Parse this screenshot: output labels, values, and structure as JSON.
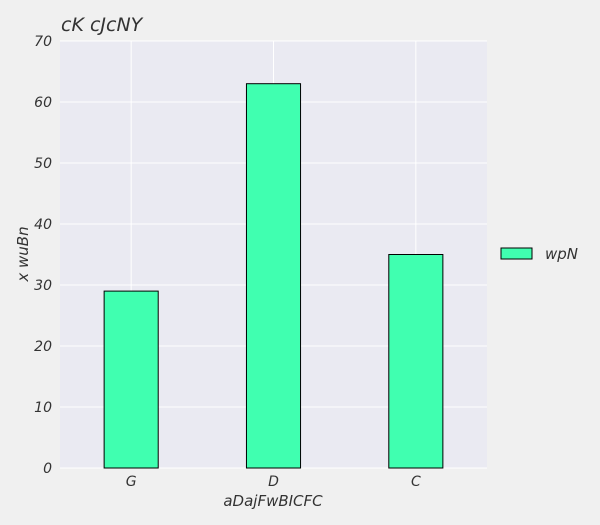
{
  "chart_data": {
    "type": "bar",
    "title": "cK cJcNY",
    "xlabel": "aDajFwBICFC",
    "ylabel": "x wuBn",
    "categories": [
      "G",
      "D",
      "C"
    ],
    "series": [
      {
        "name": "wpN",
        "values": [
          29,
          63,
          35
        ]
      }
    ],
    "ylim": [
      0,
      70
    ],
    "yticks": [
      0,
      10,
      20,
      30,
      40,
      50,
      60,
      70
    ],
    "grid": true,
    "legend_position": "right",
    "colors": {
      "bar_fill": "#40ffb0",
      "bar_edge": "#000000",
      "plot_background": "#eaeaf2",
      "figure_background": "#f0f0f0",
      "grid": "#ffffff",
      "text": "#333333"
    }
  }
}
